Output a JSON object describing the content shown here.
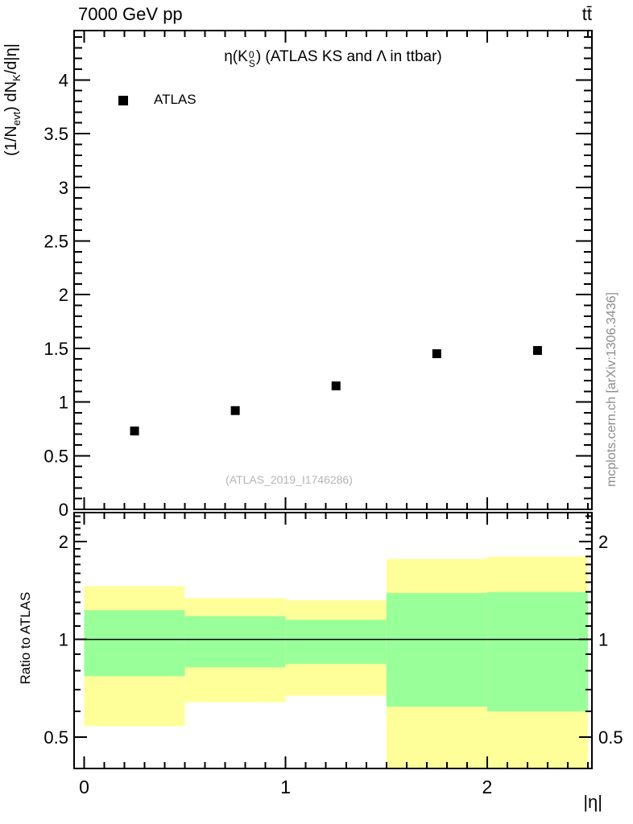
{
  "header": {
    "left_title": "7000 GeV pp",
    "right_title": "tt̄"
  },
  "main_panel": {
    "title": {
      "pre": "η(K",
      "sup": "0",
      "sub": "S",
      "post": ") (ATLAS KS and Λ in ttbar)"
    },
    "ylabel": {
      "p1": "(1/N",
      "sub1": "evt",
      "p2": ") dN",
      "sub2": "K",
      "p3": "/d|η|"
    },
    "legend": {
      "label": "ATLAS",
      "marker": "filled-black-square"
    },
    "watermark": "(ATLAS_2019_I1746286)"
  },
  "ratio_panel": {
    "ylabel": "Ratio to ATLAS"
  },
  "xaxis_label": "|η|",
  "side_text": "mcplots.cern.ch [arXiv:1306.3436]",
  "colors": {
    "band_yellow": "#ffff99",
    "band_green": "#99ff99",
    "marker": "#000000",
    "axis": "#000000",
    "watermark_gray": "#b5b5b5",
    "side_text_gray": "#8c8c8c"
  },
  "chart_data": {
    "type": "scatter",
    "title": "η(K0S) (ATLAS KS and Λ in ttbar)",
    "xlabel": "|η|",
    "ylabel": "(1/Nevt) dNK/d|η|",
    "legend_position": "top-left-inside",
    "grid": false,
    "xlim": [
      -0.05,
      2.52
    ],
    "xticks_major": [
      0,
      1,
      2
    ],
    "xtick_labels": [
      "0",
      "1",
      "2"
    ],
    "xticks_minor_step": 0.1,
    "xticks_minor_range": [
      0,
      2.5
    ],
    "main_ylim": [
      0,
      4.46
    ],
    "main_yticks_major_step": 0.5,
    "main_yticks_minor_step": 0.1,
    "main_ytick_values": [
      0,
      0.5,
      1,
      1.5,
      2,
      2.5,
      3,
      3.5,
      4
    ],
    "main_ytick_labels": [
      "0",
      "0.5",
      "1",
      "1.5",
      "2",
      "2.5",
      "3",
      "3.5",
      "4"
    ],
    "series": [
      {
        "name": "ATLAS",
        "marker": "filled-square",
        "x": [
          0.25,
          0.75,
          1.25,
          1.75,
          2.25
        ],
        "y": [
          0.73,
          0.92,
          1.15,
          1.45,
          1.48
        ]
      }
    ],
    "ratio": {
      "label": "Ratio to ATLAS",
      "scale": "log",
      "ylim": [
        0.4,
        2.46
      ],
      "yticks_major": [
        0.5,
        1,
        2
      ],
      "ytick_labels": [
        "0.5",
        "1",
        "2"
      ],
      "yticks_minor": [
        0.6,
        0.7,
        0.8,
        0.9,
        1.1,
        1.2,
        1.3,
        1.4,
        1.5,
        1.6,
        1.7,
        1.8,
        1.9,
        2.1,
        2.2,
        2.3,
        2.4
      ],
      "reference_line": 1,
      "bins": [
        0,
        0.5,
        1.0,
        1.5,
        2.0,
        2.5
      ],
      "yellow_band_hi": [
        1.46,
        1.34,
        1.32,
        1.77,
        1.8
      ],
      "yellow_band_lo": [
        0.54,
        0.64,
        0.67,
        0.4,
        0.4
      ],
      "green_band_hi": [
        1.23,
        1.18,
        1.15,
        1.39,
        1.4
      ],
      "green_band_lo": [
        0.77,
        0.82,
        0.84,
        0.62,
        0.6
      ]
    }
  }
}
